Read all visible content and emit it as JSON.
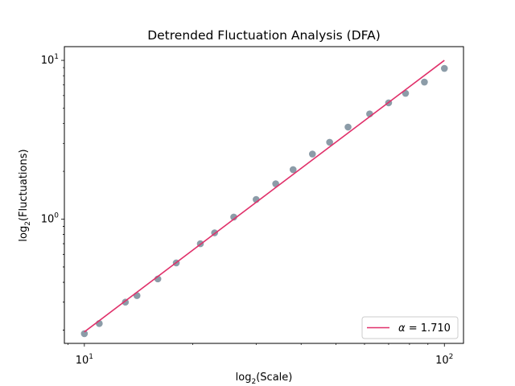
{
  "chart_data": {
    "type": "scatter",
    "title": "Detrended Fluctuation Analysis (DFA)",
    "xlabel": {
      "prefix": "log",
      "sub": "2",
      "suffix": "(Scale)"
    },
    "ylabel": {
      "prefix": "log",
      "sub": "2",
      "suffix": "(Fluctuations)"
    },
    "xscale": "log",
    "yscale": "log",
    "xlim": [
      8.8,
      113
    ],
    "ylim": [
      0.165,
      12.2
    ],
    "x_ticks": [
      {
        "value": 10,
        "base": "10",
        "exp": "1"
      },
      {
        "value": 100,
        "base": "10",
        "exp": "2"
      }
    ],
    "y_ticks": [
      {
        "value": 1,
        "base": "10",
        "exp": "0"
      },
      {
        "value": 10,
        "base": "10",
        "exp": "1"
      }
    ],
    "grid": false,
    "legend_position": "lower-right",
    "points_color": "#8c9ca8",
    "line_color": "#e0306a",
    "series": [
      {
        "name": "",
        "kind": "points",
        "x": [
          10,
          11,
          13,
          14,
          16,
          18,
          21,
          23,
          26,
          30,
          34,
          38,
          43,
          48,
          54,
          62,
          70,
          78,
          88,
          100
        ],
        "y": [
          0.19,
          0.22,
          0.3,
          0.33,
          0.42,
          0.53,
          0.7,
          0.82,
          1.03,
          1.33,
          1.67,
          2.05,
          2.57,
          3.05,
          3.8,
          4.6,
          5.4,
          6.2,
          7.3,
          8.9
        ]
      },
      {
        "name": "α = 1.710",
        "legend_symbol": "α",
        "legend_rest": " = 1.710",
        "kind": "line",
        "x": [
          10,
          100
        ],
        "y": [
          0.195,
          10.0
        ]
      }
    ]
  }
}
